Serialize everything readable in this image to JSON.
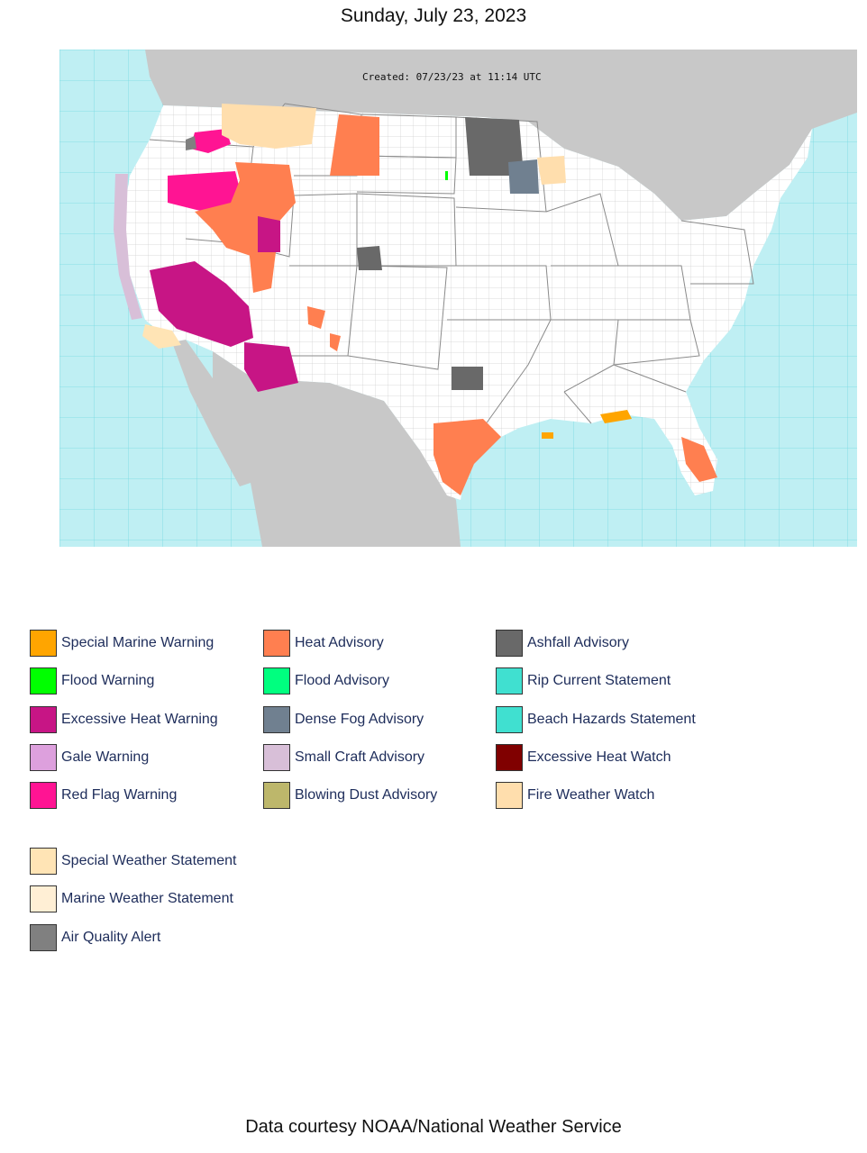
{
  "page": {
    "date": "Sunday, July 23, 2023",
    "footer": "Data courtesy NOAA/National Weather Service"
  },
  "map": {
    "created_label": "Created: 07/23/23 at 11:14 UTC",
    "colors": {
      "ocean": "#bfeff3",
      "land_other": "#c8c8c8",
      "us_land": "#ffffff",
      "county_lines": "#c9c9c9",
      "state_lines": "#777777",
      "marine_zone_lines": "#38c9d4"
    }
  },
  "legend": {
    "columns": [
      [
        {
          "label": "Special Marine Warning",
          "color": "#ffa500"
        },
        {
          "label": "Flood Warning",
          "color": "#00ff00"
        },
        {
          "label": "Excessive Heat Warning",
          "color": "#c71585"
        },
        {
          "label": "Gale Warning",
          "color": "#dda0dd"
        },
        {
          "label": "Red Flag Warning",
          "color": "#ff1493"
        }
      ],
      [
        {
          "label": "Heat Advisory",
          "color": "#ff7f50"
        },
        {
          "label": "Flood Advisory",
          "color": "#00ff7f"
        },
        {
          "label": "Dense Fog Advisory",
          "color": "#708090"
        },
        {
          "label": "Small Craft Advisory",
          "color": "#d8bfd8"
        },
        {
          "label": "Blowing Dust Advisory",
          "color": "#bdb76b"
        }
      ],
      [
        {
          "label": "Ashfall Advisory",
          "color": "#696969"
        },
        {
          "label": "Rip Current Statement",
          "color": "#40e0d0"
        },
        {
          "label": "Beach Hazards Statement",
          "color": "#40e0d0"
        },
        {
          "label": "Excessive Heat Watch",
          "color": "#800000"
        },
        {
          "label": "Fire Weather Watch",
          "color": "#ffdead"
        }
      ]
    ],
    "extra": [
      {
        "label": "Special Weather Statement",
        "color": "#ffe4b5"
      },
      {
        "label": "Marine Weather Statement",
        "color": "#ffefd5"
      },
      {
        "label": "Air Quality Alert",
        "color": "#808080"
      }
    ]
  }
}
